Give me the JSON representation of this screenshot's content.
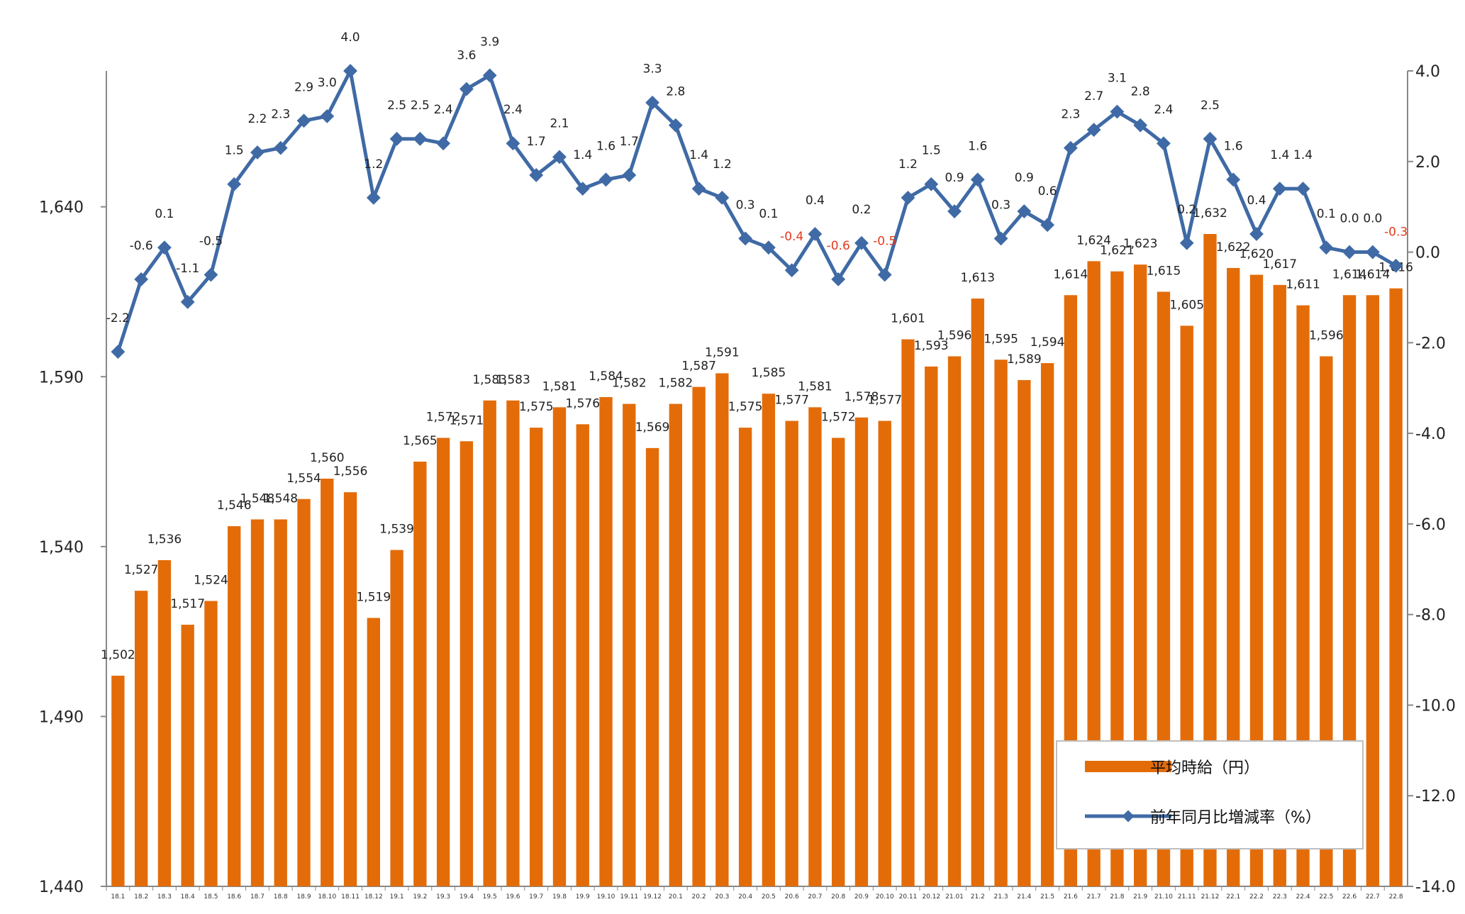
{
  "chart_data": {
    "type": "bar",
    "categories": [
      "18.1",
      "18.2",
      "18.3",
      "18.4",
      "18.5",
      "18.6",
      "18.7",
      "18.8",
      "18.9",
      "18.10",
      "18.11",
      "18.12",
      "19.1",
      "19.2",
      "19.3",
      "19.4",
      "19.5",
      "19.6",
      "19.7",
      "19.8",
      "19.9",
      "19.10",
      "19.11",
      "19.12",
      "20.1",
      "20.2",
      "20.3",
      "20.4",
      "20.5",
      "20.6",
      "20.7",
      "20.8",
      "20.9",
      "20.10",
      "20.11",
      "20.12",
      "21.01",
      "21.2",
      "21.3",
      "21.4",
      "21.5",
      "21.6",
      "21.7",
      "21.8",
      "21.9",
      "21.10",
      "21.11",
      "21.12",
      "22.1",
      "22.2",
      "22.3",
      "22.4",
      "22.5",
      "22.6",
      "22.7",
      "22.8"
    ],
    "series": [
      {
        "name": "平均時給（円）",
        "type": "bar",
        "axis": "left",
        "color": "#E36C09",
        "values": [
          1502,
          1527,
          1536,
          1517,
          1524,
          1546,
          1548,
          1548,
          1554,
          1560,
          1556,
          1519,
          1539,
          1565,
          1572,
          1571,
          1583,
          1583,
          1575,
          1581,
          1576,
          1584,
          1582,
          1569,
          1582,
          1587,
          1591,
          1575,
          1585,
          1577,
          1581,
          1572,
          1578,
          1577,
          1601,
          1593,
          1596,
          1613,
          1595,
          1589,
          1594,
          1614,
          1624,
          1621,
          1623,
          1615,
          1605,
          1632,
          1622,
          1620,
          1617,
          1611,
          1596,
          1614,
          1614,
          1616
        ],
        "labels": [
          "1,502",
          "1,527",
          "1,536",
          "1,517",
          "1,524",
          "1,546",
          "1,548",
          "1,548",
          "1,554",
          "1,560",
          "1,556",
          "1,519",
          "1,539",
          "1,565",
          "1,572",
          "1,571",
          "1,583",
          "1,583",
          "1,575",
          "1,581",
          "1,576",
          "1,584",
          "1,582",
          "1,569",
          "1,582",
          "1,587",
          "1,591",
          "1,575",
          "1,585",
          "1,577",
          "1,581",
          "1,572",
          "1,578",
          "1,577",
          "1,601",
          "1,593",
          "1,596",
          "1,613",
          "1,595",
          "1,589",
          "1,594",
          "1,614",
          "1,624",
          "1,621",
          "1,623",
          "1,615",
          "1,605",
          "1,632",
          "1,622",
          "1,620",
          "1,617",
          "1,611",
          "1,596",
          "1,614",
          "1,614",
          "1,616"
        ]
      },
      {
        "name": "前年同月比増減率（%）",
        "type": "line",
        "axis": "right",
        "color": "#3F6AA5",
        "values": [
          -2.2,
          -0.6,
          0.1,
          -1.1,
          -0.5,
          1.5,
          2.2,
          2.3,
          2.9,
          3.0,
          4.0,
          1.2,
          2.5,
          2.5,
          2.4,
          3.6,
          3.9,
          2.4,
          1.7,
          2.1,
          1.4,
          1.6,
          1.7,
          3.3,
          2.8,
          1.4,
          1.2,
          0.3,
          0.1,
          -0.4,
          0.4,
          -0.6,
          0.2,
          -0.5,
          1.2,
          1.5,
          0.9,
          1.6,
          0.3,
          0.9,
          0.6,
          2.3,
          2.7,
          3.1,
          2.8,
          2.4,
          0.2,
          2.5,
          1.6,
          0.4,
          1.4,
          1.4,
          0.1,
          0.0,
          0.0,
          -0.3
        ],
        "labels": [
          "-2.2",
          "-0.6",
          "0.1",
          "-1.1",
          "-0.5",
          "1.5",
          "2.2",
          "2.3",
          "2.9",
          "3.0",
          "4.0",
          "1.2",
          "2.5",
          "2.5",
          "2.4",
          "3.6",
          "3.9",
          "2.4",
          "1.7",
          "2.1",
          "1.4",
          "1.6",
          "1.7",
          "3.3",
          "2.8",
          "1.4",
          "1.2",
          "0.3",
          "0.1",
          "-0.4",
          "0.4",
          "-0.6",
          "0.2",
          "-0.5",
          "1.2",
          "1.5",
          "0.9",
          "1.6",
          "0.3",
          "0.9",
          "0.6",
          "2.3",
          "2.7",
          "3.1",
          "2.8",
          "2.4",
          "0.2",
          "2.5",
          "1.6",
          "0.4",
          "1.4",
          "1.4",
          "0.1",
          "0.0",
          "0.0",
          "-0.3"
        ],
        "negative_label_color": "#E23A1C"
      }
    ],
    "y_left": {
      "range": [
        1440,
        1680
      ],
      "ticks": [
        "1,440",
        "1,490",
        "1,540",
        "1,590",
        "1,640"
      ],
      "tick_values": [
        1440,
        1490,
        1540,
        1590,
        1640
      ]
    },
    "y_right": {
      "range": [
        -14.0,
        4.0
      ],
      "ticks": [
        "-14.0",
        "-12.0",
        "-10.0",
        "-8.0",
        "-6.0",
        "-4.0",
        "-2.0",
        "0.0",
        "2.0",
        "4.0"
      ],
      "tick_values": [
        -14,
        -12,
        -10,
        -8,
        -6,
        -4,
        -2,
        0,
        2,
        4
      ]
    },
    "grid": false,
    "legend": {
      "placement": "bottom-right",
      "items": [
        {
          "label": "平均時給（円）",
          "icon": "bar-swatch"
        },
        {
          "label": "前年同月比増減率（%）",
          "icon": "line-diamond-marker"
        }
      ]
    },
    "title": "",
    "xlabel": "",
    "ylabel": ""
  }
}
